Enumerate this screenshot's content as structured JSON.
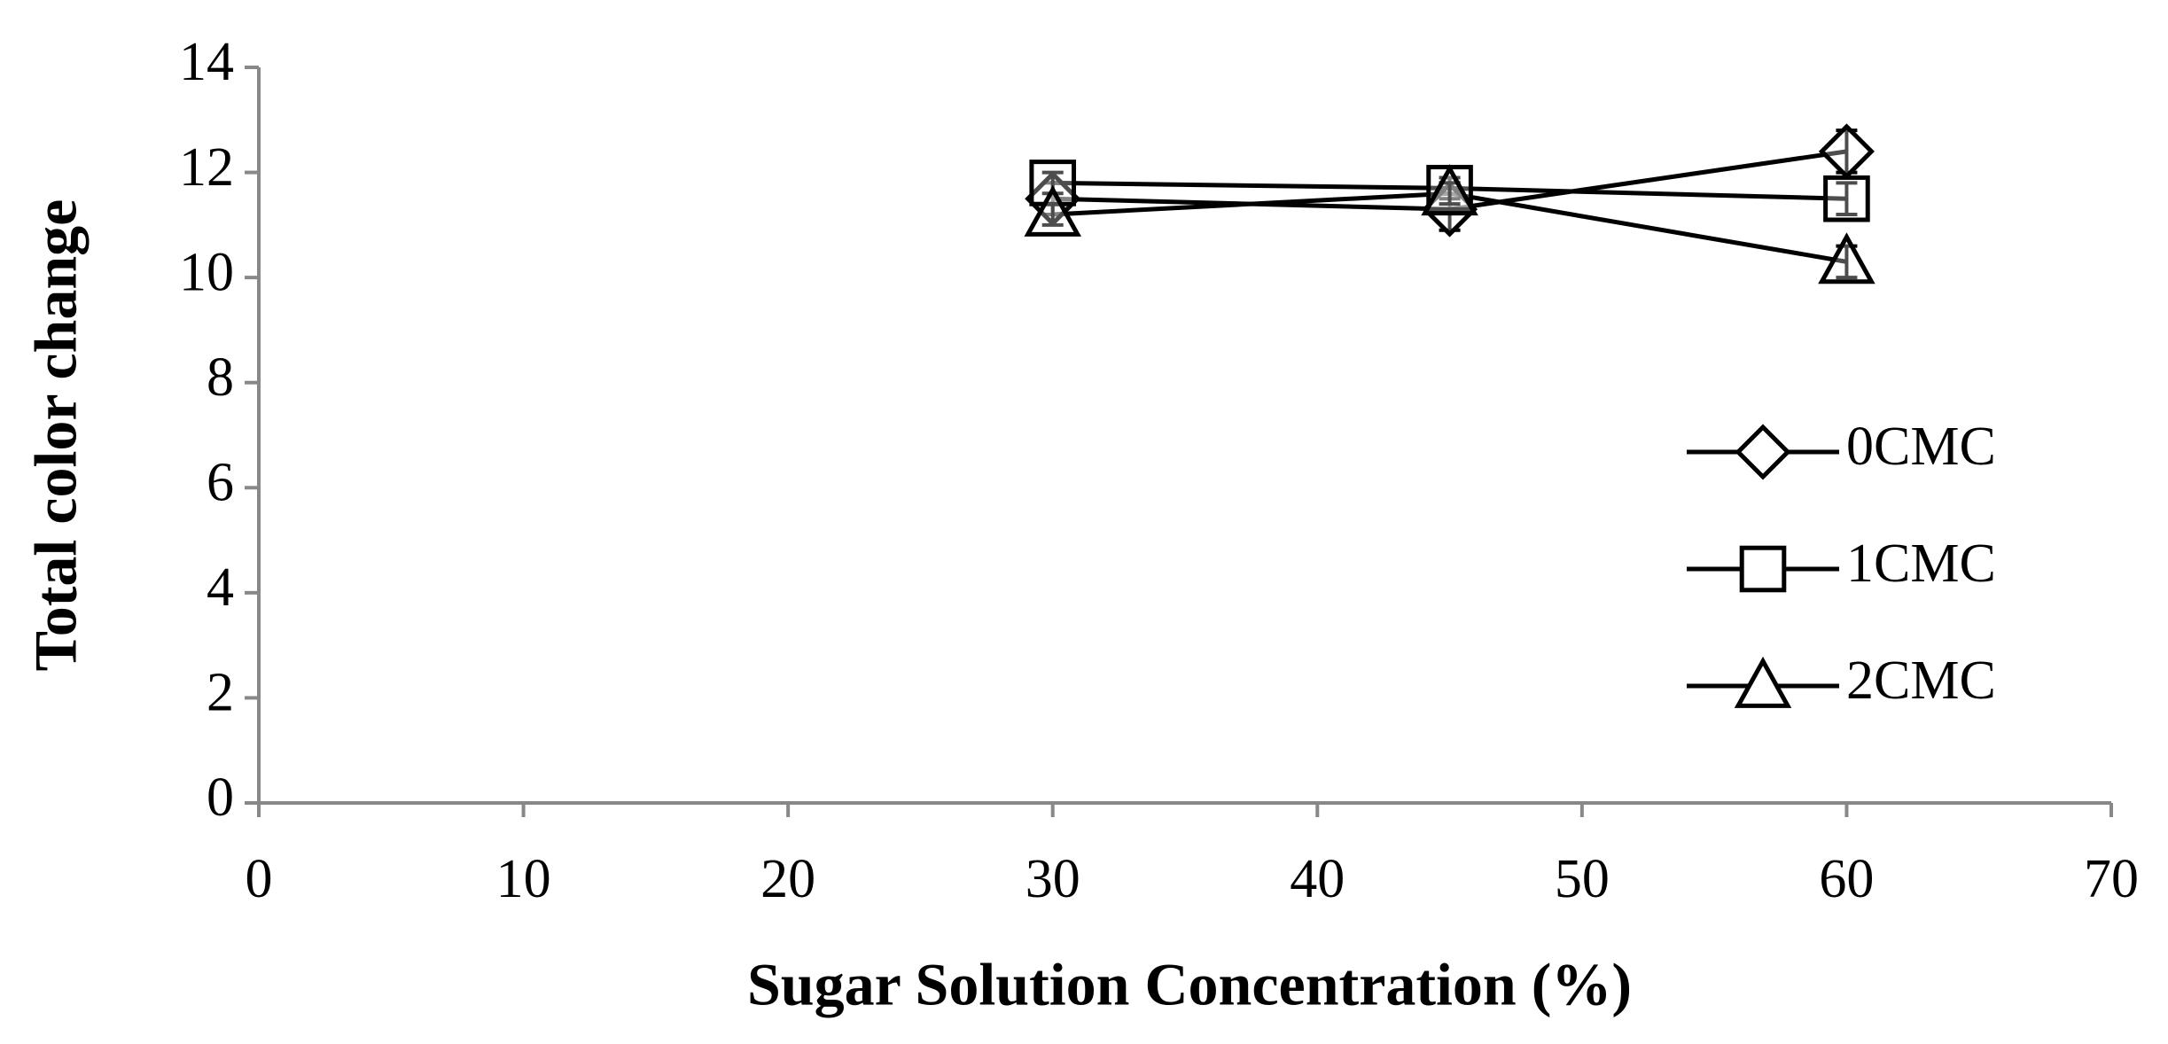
{
  "chart_data": {
    "type": "line",
    "x_label": "Sugar Solution Concentration (%)",
    "y_label": "Total color change",
    "x": [
      30,
      45,
      60
    ],
    "series": [
      {
        "name": "0CMC",
        "color": "#000000",
        "marker": "diamond",
        "values": [
          11.5,
          11.3,
          12.4
        ],
        "errors": [
          0.3,
          0.4,
          0.4
        ]
      },
      {
        "name": "1CMC",
        "color": "#000000",
        "marker": "square",
        "values": [
          11.8,
          11.7,
          11.5
        ],
        "errors": [
          0.2,
          0.2,
          0.3
        ]
      },
      {
        "name": "2CMC",
        "color": "#000000",
        "marker": "triangle",
        "values": [
          11.2,
          11.6,
          10.3
        ],
        "errors": [
          0.2,
          0.2,
          0.3
        ]
      }
    ],
    "xlim": [
      0,
      70
    ],
    "xticks": [
      0,
      10,
      20,
      30,
      40,
      50,
      60,
      70
    ],
    "ylim": [
      0,
      14
    ],
    "yticks": [
      0,
      2,
      4,
      6,
      8,
      10,
      12,
      14
    ],
    "legend": "right",
    "grid": false
  }
}
